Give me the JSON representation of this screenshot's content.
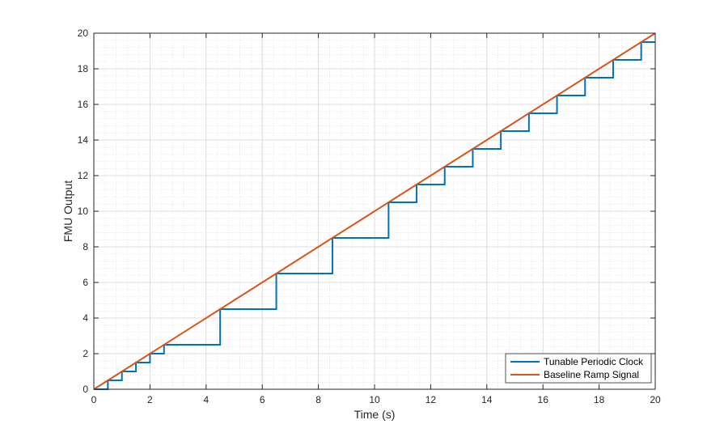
{
  "chart_data": {
    "type": "line",
    "title": "",
    "xlabel": "Time (s)",
    "ylabel": "FMU Output",
    "xlim": [
      0,
      20
    ],
    "ylim": [
      0,
      20
    ],
    "xticks": [
      "0",
      "2",
      "4",
      "6",
      "8",
      "10",
      "12",
      "14",
      "16",
      "18",
      "20"
    ],
    "yticks": [
      "0",
      "2",
      "4",
      "6",
      "8",
      "10",
      "12",
      "14",
      "16",
      "18",
      "20"
    ],
    "grid": true,
    "minor_grid": true,
    "legend_position": "bottom-right",
    "series": [
      {
        "name": "Tunable Periodic Clock",
        "color": "#0072BD",
        "style": "step",
        "x": [
          0,
          0.5,
          0.5,
          1,
          1,
          1.5,
          1.5,
          2,
          2,
          2.5,
          2.5,
          4.5,
          4.5,
          6.5,
          6.5,
          8.5,
          8.5,
          10.5,
          10.5,
          11.5,
          11.5,
          12.5,
          12.5,
          13.5,
          13.5,
          14.5,
          14.5,
          15.5,
          15.5,
          16.5,
          16.5,
          17.5,
          17.5,
          18.5,
          18.5,
          19.5,
          19.5,
          20
        ],
        "y": [
          0,
          0,
          0.5,
          0.5,
          1,
          1,
          1.5,
          1.5,
          2,
          2,
          2.5,
          2.5,
          4.5,
          4.5,
          6.5,
          6.5,
          8.5,
          8.5,
          10.5,
          10.5,
          11.5,
          11.5,
          12.5,
          12.5,
          13.5,
          13.5,
          14.5,
          14.5,
          15.5,
          15.5,
          16.5,
          16.5,
          17.5,
          17.5,
          18.5,
          18.5,
          19.5,
          19.5
        ]
      },
      {
        "name": "Baseline Ramp Signal",
        "color": "#D95319",
        "style": "line",
        "x": [
          0,
          20
        ],
        "y": [
          0,
          20
        ]
      }
    ]
  }
}
